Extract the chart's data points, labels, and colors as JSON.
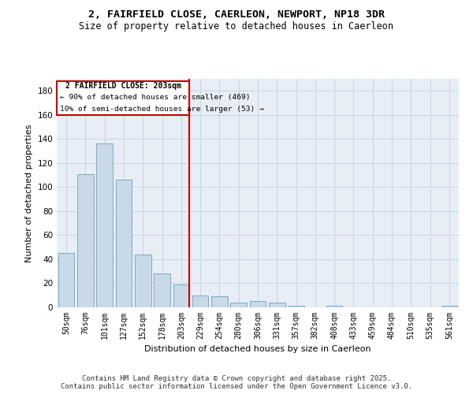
{
  "title_line1": "2, FAIRFIELD CLOSE, CAERLEON, NEWPORT, NP18 3DR",
  "title_line2": "Size of property relative to detached houses in Caerleon",
  "xlabel": "Distribution of detached houses by size in Caerleon",
  "ylabel": "Number of detached properties",
  "categories": [
    "50sqm",
    "76sqm",
    "101sqm",
    "127sqm",
    "152sqm",
    "178sqm",
    "203sqm",
    "229sqm",
    "254sqm",
    "280sqm",
    "306sqm",
    "331sqm",
    "357sqm",
    "382sqm",
    "408sqm",
    "433sqm",
    "459sqm",
    "484sqm",
    "510sqm",
    "535sqm",
    "561sqm"
  ],
  "values": [
    45,
    111,
    136,
    106,
    44,
    28,
    19,
    10,
    9,
    4,
    5,
    4,
    1,
    0,
    1,
    0,
    0,
    0,
    0,
    0,
    1
  ],
  "bar_color": "#c9d9e8",
  "bar_edge_color": "#7aaac8",
  "vline_index": 6,
  "vline_color": "#cc0000",
  "annotation_box_color": "#cc0000",
  "annotation_text_line1": "2 FAIRFIELD CLOSE: 203sqm",
  "annotation_text_line2": "← 90% of detached houses are smaller (469)",
  "annotation_text_line3": "10% of semi-detached houses are larger (53) →",
  "ylim": [
    0,
    190
  ],
  "yticks": [
    0,
    20,
    40,
    60,
    80,
    100,
    120,
    140,
    160,
    180
  ],
  "grid_color": "#ccd6e4",
  "background_color": "#e8eef5",
  "footer_text": "Contains HM Land Registry data © Crown copyright and database right 2025.\nContains public sector information licensed under the Open Government Licence v3.0.",
  "fig_width": 6.0,
  "fig_height": 5.0,
  "dpi": 100
}
